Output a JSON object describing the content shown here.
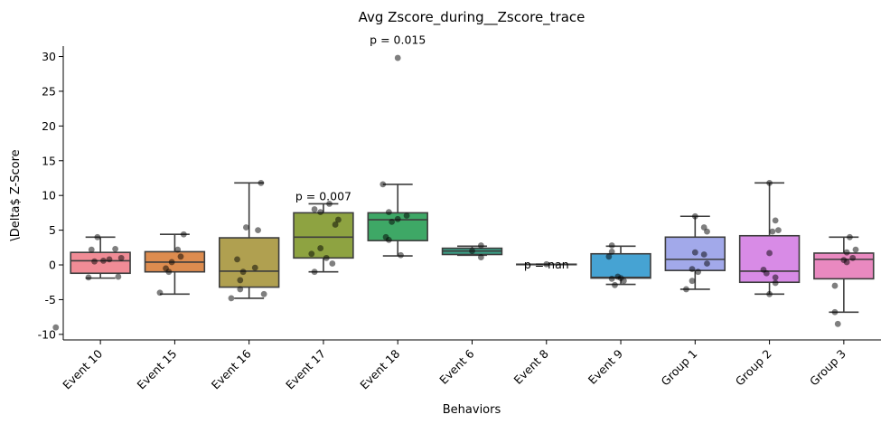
{
  "chart_data": {
    "type": "box",
    "title": "Avg Zscore_during__Zscore_trace",
    "xlabel": "Behaviors",
    "ylabel": "\\Delta$ Z-Score",
    "ylim": [
      -10.8,
      31.5
    ],
    "yticks": [
      -10,
      -5,
      0,
      5,
      10,
      15,
      20,
      25,
      30
    ],
    "grid": false,
    "categories": [
      "Event 10",
      "Event 15",
      "Event 16",
      "Event 17",
      "Event 18",
      "Event 6",
      "Event 8",
      "Event 9",
      "Group 1",
      "Group 2",
      "Group 3"
    ],
    "colors": [
      "#f08c96",
      "#dd8c4f",
      "#b0a050",
      "#8ea341",
      "#3ea866",
      "#3a9e85",
      "#3a9b8a",
      "#46a3d3",
      "#a2a9ea",
      "#d88be6",
      "#e989c0"
    ],
    "boxes": [
      {
        "whislo": -1.9,
        "q1": -1.2,
        "med": 0.6,
        "q3": 1.8,
        "whishi": 4.0
      },
      {
        "whislo": -4.2,
        "q1": -1.0,
        "med": 0.4,
        "q3": 1.9,
        "whishi": 4.4
      },
      {
        "whislo": -4.8,
        "q1": -3.2,
        "med": -0.9,
        "q3": 3.9,
        "whishi": 11.8
      },
      {
        "whislo": -1.0,
        "q1": 1.0,
        "med": 4.0,
        "q3": 7.5,
        "whishi": 8.8
      },
      {
        "whislo": 1.3,
        "q1": 3.5,
        "med": 6.5,
        "q3": 7.5,
        "whishi": 11.6
      },
      {
        "whislo": 1.4,
        "q1": 1.5,
        "med": 2.0,
        "q3": 2.4,
        "whishi": 2.7
      },
      {
        "whislo": 0.1,
        "q1": 0.1,
        "med": 0.1,
        "q3": 0.1,
        "whishi": 0.1
      },
      {
        "whislo": -2.8,
        "q1": -1.9,
        "med": -1.8,
        "q3": 1.6,
        "whishi": 2.7
      },
      {
        "whislo": -3.5,
        "q1": -0.8,
        "med": 0.8,
        "q3": 4.0,
        "whishi": 7.0
      },
      {
        "whislo": -4.2,
        "q1": -2.5,
        "med": -0.9,
        "q3": 4.2,
        "whishi": 11.8
      },
      {
        "whislo": -6.8,
        "q1": -2.0,
        "med": 0.8,
        "q3": 1.7,
        "whishi": 4.0
      }
    ],
    "points": [
      [
        [
          0.5,
          2.3
        ],
        [
          -0.3,
          2.2
        ],
        [
          -0.2,
          0.5
        ],
        [
          0.1,
          0.6
        ],
        [
          0.3,
          0.8
        ],
        [
          0.7,
          1.0
        ],
        [
          -0.4,
          -1.8
        ],
        [
          0.6,
          -1.7
        ],
        [
          -0.1,
          4.0
        ],
        [
          -1.5,
          -9.0
        ]
      ],
      [
        [
          0.3,
          4.4
        ],
        [
          0.1,
          2.2
        ],
        [
          0.2,
          1.2
        ],
        [
          -0.1,
          0.4
        ],
        [
          -0.3,
          -0.5
        ],
        [
          -0.2,
          -1.0
        ],
        [
          -0.5,
          -4.0
        ]
      ],
      [
        [
          0.4,
          11.8
        ],
        [
          -0.1,
          5.4
        ],
        [
          0.3,
          5.0
        ],
        [
          -0.4,
          0.8
        ],
        [
          0.2,
          -0.4
        ],
        [
          -0.2,
          -1.0
        ],
        [
          -0.3,
          -2.2
        ],
        [
          -0.3,
          -3.5
        ],
        [
          0.5,
          -4.2
        ],
        [
          -0.6,
          -4.8
        ]
      ],
      [
        [
          0.2,
          8.8
        ],
        [
          -0.3,
          8.0
        ],
        [
          -0.1,
          7.6
        ],
        [
          0.5,
          6.5
        ],
        [
          0.4,
          5.8
        ],
        [
          -0.1,
          2.4
        ],
        [
          -0.4,
          1.6
        ],
        [
          0.1,
          1.0
        ],
        [
          0.3,
          0.2
        ],
        [
          -0.3,
          -1.0
        ]
      ],
      [
        [
          0.0,
          29.8
        ],
        [
          -0.5,
          11.6
        ],
        [
          0.3,
          7.1
        ],
        [
          -0.3,
          7.6
        ],
        [
          0.0,
          6.6
        ],
        [
          -0.2,
          6.2
        ],
        [
          -0.4,
          4.0
        ],
        [
          -0.3,
          3.6
        ],
        [
          0.1,
          1.4
        ]
      ],
      [
        [
          0.3,
          2.8
        ],
        [
          0.0,
          2.0
        ],
        [
          0.3,
          1.1
        ]
      ],
      [
        [
          0.0,
          0.1
        ]
      ],
      [
        [
          -0.3,
          2.8
        ],
        [
          -0.3,
          1.9
        ],
        [
          -0.4,
          1.2
        ],
        [
          -0.1,
          -1.7
        ],
        [
          0.0,
          -1.9
        ],
        [
          -0.3,
          -2.0
        ],
        [
          0.1,
          -2.3
        ],
        [
          -0.2,
          -2.9
        ]
      ],
      [
        [
          0.0,
          7.0
        ],
        [
          0.3,
          5.4
        ],
        [
          0.4,
          4.8
        ],
        [
          0.0,
          1.8
        ],
        [
          0.3,
          1.5
        ],
        [
          0.4,
          0.2
        ],
        [
          -0.1,
          -0.6
        ],
        [
          0.1,
          -1.0
        ],
        [
          -0.1,
          -2.3
        ],
        [
          -0.3,
          -3.5
        ]
      ],
      [
        [
          0.0,
          11.8
        ],
        [
          0.2,
          6.4
        ],
        [
          0.3,
          5.0
        ],
        [
          0.1,
          4.8
        ],
        [
          0.0,
          1.7
        ],
        [
          -0.2,
          -0.7
        ],
        [
          -0.1,
          -1.2
        ],
        [
          0.2,
          -1.8
        ],
        [
          0.2,
          -2.6
        ],
        [
          0.0,
          -4.2
        ]
      ],
      [
        [
          0.2,
          4.0
        ],
        [
          0.4,
          2.2
        ],
        [
          0.1,
          1.8
        ],
        [
          0.3,
          1.0
        ],
        [
          0.0,
          0.7
        ],
        [
          0.1,
          0.4
        ],
        [
          -0.3,
          -3.0
        ],
        [
          -0.3,
          -6.8
        ],
        [
          -0.2,
          -8.5
        ]
      ]
    ],
    "annotations": [
      {
        "category_index": 3,
        "y": 9.3,
        "text": "p = 0.007"
      },
      {
        "category_index": 4,
        "y": 31.8,
        "text": "p = 0.015"
      },
      {
        "category_index": 6,
        "y": -0.5,
        "text": "p = nan"
      }
    ]
  }
}
